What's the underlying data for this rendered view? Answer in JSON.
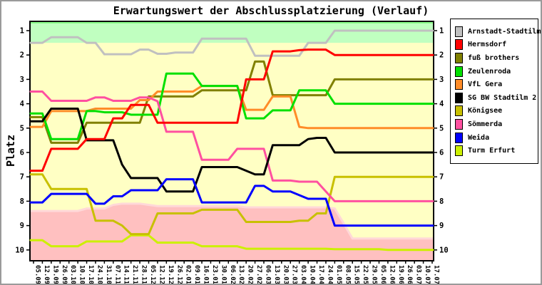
{
  "title": "Erwartungswert der Abschlussplatzierung (Verlauf)",
  "ylabel": "Platz",
  "chart_data": {
    "type": "line",
    "legend_position": "right",
    "y_axis_inverted": true,
    "ylim": [
      0.5,
      10.5
    ],
    "y_ticks": [
      "1",
      "2",
      "3",
      "4",
      "5",
      "6",
      "7",
      "8",
      "9",
      "10"
    ],
    "x_labels": [
      "05.09",
      "12.09",
      "19.09",
      "26.09",
      "03.10",
      "10.10",
      "17.10",
      "24.10",
      "31.10",
      "07.11",
      "14.11",
      "21.11",
      "28.11",
      "05.12",
      "12.12",
      "19.12",
      "26.12",
      "02.01",
      "09.01",
      "16.01",
      "23.01",
      "30.01",
      "06.02",
      "13.02",
      "20.02",
      "27.02",
      "06.03",
      "13.03",
      "20.03",
      "27.03",
      "03.04",
      "10.04",
      "17.04",
      "24.04",
      "01.05",
      "08.05",
      "15.05",
      "22.05",
      "29.05",
      "05.06",
      "12.06",
      "19.06",
      "26.06",
      "03.07",
      "10.07",
      "17.07"
    ],
    "zones": {
      "promotion": {
        "color": "#c0ffc0",
        "edge_color": "#8aff8a",
        "from": 0.5,
        "to": 1.5
      },
      "midfield": {
        "color": "#ffffc4"
      },
      "relegation": {
        "color": "#ffc0c0",
        "edge_color": "#ffd8d8",
        "top_edge": [
          8.4,
          8.4,
          8.4,
          8.4,
          8.4,
          8.4,
          8.3,
          8.3,
          8.3,
          8.15,
          8.1,
          8.1,
          8.1,
          8.15,
          8.2,
          8.2,
          8.2,
          8.2,
          8.2,
          8.2,
          8.2,
          8.2,
          8.2,
          8.2,
          8.25,
          8.25,
          8.25,
          8.25,
          8.25,
          8.25,
          8.25,
          8.25,
          8.25,
          8.25,
          8.3,
          8.9,
          9.53,
          9.53,
          9.53,
          9.53,
          9.53,
          9.53,
          9.53,
          9.53,
          9.53,
          9.53
        ]
      }
    },
    "series": [
      {
        "id": "arnstadt-stadtilm",
        "name": "Arnstadt-Stadtilm",
        "color": "#c0c0c0",
        "values": [
          1.5,
          1.5,
          1.27,
          1.27,
          1.27,
          1.27,
          1.5,
          1.5,
          1.97,
          1.97,
          1.97,
          1.97,
          1.78,
          1.78,
          1.95,
          1.95,
          1.9,
          1.9,
          1.9,
          1.33,
          1.33,
          1.33,
          1.33,
          1.33,
          1.33,
          2.03,
          2.03,
          2.03,
          2.03,
          2.03,
          2.03,
          1.5,
          1.5,
          1.5,
          1.0,
          1.0,
          1.0,
          1.0,
          1.0,
          1.0,
          1.0,
          1.0,
          1.0,
          1.0,
          1.0,
          1.0
        ]
      },
      {
        "id": "hermsdorf",
        "name": "Hermsdorf",
        "color": "#ff0000",
        "values": [
          6.75,
          6.75,
          5.85,
          5.85,
          5.85,
          5.85,
          5.45,
          5.45,
          5.45,
          4.6,
          4.6,
          4.05,
          4.05,
          4.05,
          4.78,
          4.78,
          4.78,
          4.78,
          4.78,
          4.78,
          4.78,
          4.78,
          4.78,
          4.78,
          3.0,
          3.0,
          3.0,
          1.85,
          1.85,
          1.85,
          1.8,
          1.78,
          1.78,
          1.78,
          2.0,
          2.0,
          2.0,
          2.0,
          2.0,
          2.0,
          2.0,
          2.0,
          2.0,
          2.0,
          2.0,
          2.0
        ]
      },
      {
        "id": "fuss-brothers",
        "name": "fuß brothers",
        "color": "#808000",
        "values": [
          4.55,
          4.55,
          5.6,
          5.6,
          5.6,
          5.6,
          4.78,
          4.78,
          4.78,
          4.78,
          4.78,
          4.78,
          4.78,
          3.7,
          3.7,
          3.7,
          3.7,
          3.7,
          3.7,
          3.45,
          3.45,
          3.45,
          3.45,
          3.45,
          3.45,
          2.27,
          2.27,
          3.65,
          3.65,
          3.65,
          3.65,
          3.65,
          3.65,
          3.65,
          3.0,
          3.0,
          3.0,
          3.0,
          3.0,
          3.0,
          3.0,
          3.0,
          3.0,
          3.0,
          3.0,
          3.0
        ]
      },
      {
        "id": "zeulenroda",
        "name": "Zeulenroda",
        "color": "#00e000",
        "values": [
          4.4,
          4.4,
          5.45,
          5.45,
          5.45,
          5.45,
          4.3,
          4.3,
          4.35,
          4.35,
          4.35,
          4.45,
          4.45,
          4.45,
          4.45,
          2.76,
          2.76,
          2.76,
          2.76,
          3.27,
          3.27,
          3.27,
          3.27,
          3.27,
          4.6,
          4.6,
          4.6,
          4.27,
          4.27,
          4.27,
          3.45,
          3.45,
          3.45,
          3.45,
          4.0,
          4.0,
          4.0,
          4.0,
          4.0,
          4.0,
          4.0,
          4.0,
          4.0,
          4.0,
          4.0,
          4.0
        ]
      },
      {
        "id": "vfl-gera",
        "name": "VfL Gera",
        "color": "#ff8c28",
        "values": [
          4.95,
          4.95,
          4.3,
          4.3,
          4.3,
          4.3,
          4.3,
          4.2,
          4.2,
          4.2,
          4.2,
          4.2,
          3.85,
          3.85,
          3.5,
          3.5,
          3.5,
          3.5,
          3.5,
          3.27,
          3.27,
          3.27,
          3.27,
          3.27,
          4.25,
          4.25,
          4.25,
          3.7,
          3.7,
          3.7,
          4.95,
          5.0,
          5.0,
          5.0,
          5.0,
          5.0,
          5.0,
          5.0,
          5.0,
          5.0,
          5.0,
          5.0,
          5.0,
          5.0,
          5.0,
          5.0
        ]
      },
      {
        "id": "sg-bw-stadtilm-2",
        "name": "SG BW Stadtilm 2",
        "color": "#000000",
        "values": [
          4.72,
          4.72,
          4.2,
          4.2,
          4.2,
          4.2,
          5.5,
          5.5,
          5.5,
          5.5,
          6.5,
          7.05,
          7.05,
          7.05,
          7.05,
          7.6,
          7.6,
          7.6,
          7.6,
          6.6,
          6.6,
          6.6,
          6.6,
          6.6,
          6.75,
          6.9,
          6.9,
          5.7,
          5.7,
          5.7,
          5.7,
          5.45,
          5.4,
          5.4,
          6.0,
          6.0,
          6.0,
          6.0,
          6.0,
          6.0,
          6.0,
          6.0,
          6.0,
          6.0,
          6.0,
          6.0
        ]
      },
      {
        "id": "koenigsee",
        "name": "Königsee",
        "color": "#c8c000",
        "values": [
          6.9,
          6.9,
          7.5,
          7.5,
          7.5,
          7.5,
          7.5,
          8.8,
          8.8,
          8.8,
          9.0,
          9.35,
          9.35,
          9.35,
          8.5,
          8.5,
          8.5,
          8.5,
          8.5,
          8.35,
          8.35,
          8.35,
          8.35,
          8.35,
          8.85,
          8.85,
          8.85,
          8.85,
          8.85,
          8.85,
          8.8,
          8.8,
          8.5,
          8.5,
          7.0,
          7.0,
          7.0,
          7.0,
          7.0,
          7.0,
          7.0,
          7.0,
          7.0,
          7.0,
          7.0,
          7.0
        ]
      },
      {
        "id": "soemmerda",
        "name": "Sömmerda",
        "color": "#ff50a0",
        "values": [
          3.5,
          3.5,
          3.88,
          3.88,
          3.88,
          3.88,
          3.88,
          3.74,
          3.74,
          3.88,
          3.88,
          3.88,
          3.74,
          3.74,
          3.9,
          5.15,
          5.15,
          5.15,
          5.15,
          6.3,
          6.3,
          6.3,
          6.3,
          5.85,
          5.85,
          5.85,
          5.85,
          7.15,
          7.15,
          7.15,
          7.2,
          7.2,
          7.2,
          7.6,
          8.0,
          8.0,
          8.0,
          8.0,
          8.0,
          8.0,
          8.0,
          8.0,
          8.0,
          8.0,
          8.0,
          8.0
        ]
      },
      {
        "id": "weida",
        "name": "Weida",
        "color": "#0000ff",
        "values": [
          8.05,
          8.05,
          7.7,
          7.7,
          7.7,
          7.7,
          7.7,
          8.1,
          8.1,
          7.8,
          7.8,
          7.55,
          7.55,
          7.55,
          7.55,
          7.1,
          7.1,
          7.1,
          7.1,
          8.05,
          8.05,
          8.05,
          8.05,
          8.05,
          8.05,
          7.37,
          7.37,
          7.6,
          7.6,
          7.6,
          7.75,
          7.9,
          7.9,
          7.9,
          9.0,
          9.0,
          9.0,
          9.0,
          9.0,
          9.0,
          9.0,
          9.0,
          9.0,
          9.0,
          9.0,
          9.0
        ]
      },
      {
        "id": "turm-erfurt",
        "name": "Turm Erfurt",
        "color": "#ccf000",
        "values": [
          9.6,
          9.6,
          9.85,
          9.85,
          9.85,
          9.85,
          9.65,
          9.65,
          9.65,
          9.65,
          9.65,
          9.4,
          9.4,
          9.4,
          9.7,
          9.7,
          9.7,
          9.7,
          9.7,
          9.85,
          9.85,
          9.85,
          9.85,
          9.85,
          9.95,
          9.95,
          9.95,
          9.95,
          9.95,
          9.95,
          9.95,
          9.95,
          9.95,
          9.95,
          9.97,
          9.97,
          9.97,
          9.97,
          9.97,
          9.97,
          10.0,
          10.0,
          10.0,
          10.0,
          10.0,
          10.0
        ]
      }
    ]
  }
}
